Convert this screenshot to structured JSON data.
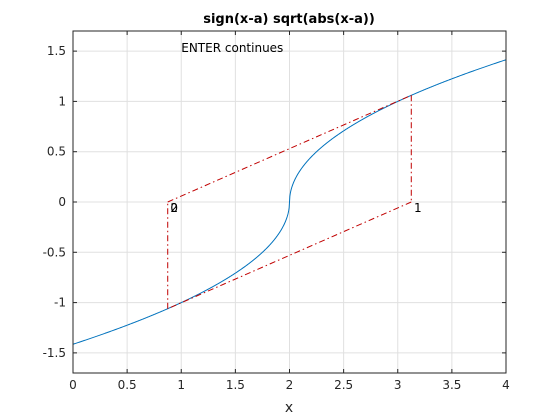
{
  "chart_data": {
    "type": "line",
    "title": "sign(x-a) sqrt(abs(x-a))",
    "xlabel": "x",
    "ylabel": "",
    "xlim": [
      0,
      4
    ],
    "ylim": [
      -1.7,
      1.7
    ],
    "xticks": [
      0,
      0.5,
      1,
      1.5,
      2,
      2.5,
      3,
      3.5,
      4
    ],
    "xtick_labels": [
      "0",
      "0.5",
      "1",
      "1.5",
      "2",
      "2.5",
      "3",
      "3.5",
      "4"
    ],
    "yticks": [
      -1.5,
      -1,
      -0.5,
      0,
      0.5,
      1,
      1.5
    ],
    "ytick_labels": [
      "-1.5",
      "-1",
      "-0.5",
      "0",
      "0.5",
      "1",
      "1.5"
    ],
    "grid": true,
    "curve": {
      "a": 2,
      "x_range": [
        0,
        4
      ],
      "color": "#0072BD"
    },
    "iteration_path": {
      "color": "#C00000",
      "style": "dash-dot",
      "points": [
        {
          "x": 0.875,
          "y": 0
        },
        {
          "x": 3.125,
          "y": 1.0607
        },
        {
          "x": 3.125,
          "y": 0
        },
        {
          "x": 0.875,
          "y": -1.0607
        },
        {
          "x": 0.875,
          "y": 0
        }
      ]
    },
    "annotations": [
      {
        "text": "ENTER continues",
        "x": 1.0,
        "y": 1.49
      },
      {
        "text": "0",
        "x": 0.9,
        "y": -0.1
      },
      {
        "text": "2",
        "x": 0.9,
        "y": -0.1
      },
      {
        "text": "1",
        "x": 3.15,
        "y": -0.1
      }
    ]
  }
}
